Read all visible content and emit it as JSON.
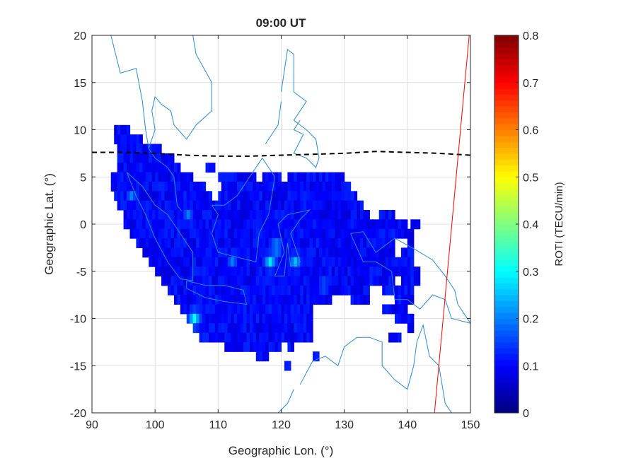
{
  "chart_data": {
    "type": "heatmap",
    "title": "09:00 UT",
    "xlabel": "Geographic Lon. (°)",
    "ylabel": "Geographic Lat. (°)",
    "xlim": [
      90,
      150
    ],
    "ylim": [
      -20,
      20
    ],
    "xticks": [
      90,
      100,
      110,
      120,
      130,
      140,
      150
    ],
    "yticks": [
      20,
      15,
      10,
      5,
      0,
      -5,
      -10,
      -15,
      -20
    ],
    "grid": true,
    "colorbar": {
      "label": "ROTI (TECU/min)",
      "colormap": "jet",
      "range": [
        0,
        0.8
      ],
      "ticks": [
        0.8,
        0.7,
        0.6,
        0.5,
        0.4,
        0.3,
        0.2,
        0.1,
        0
      ]
    },
    "roti_background": 0.1,
    "roti_coverage_rows": [
      {
        "lat": 10,
        "lon_spans": [
          [
            93.5,
            96
          ]
        ]
      },
      {
        "lat": 9,
        "lon_spans": [
          [
            93.5,
            98
          ]
        ]
      },
      {
        "lat": 8,
        "lon_spans": [
          [
            94,
            101
          ]
        ]
      },
      {
        "lat": 7,
        "lon_spans": [
          [
            94,
            103
          ]
        ]
      },
      {
        "lat": 6,
        "lon_spans": [
          [
            94,
            104
          ],
          [
            108,
            109.5
          ]
        ]
      },
      {
        "lat": 5,
        "lon_spans": [
          [
            93,
            106
          ],
          [
            110,
            116
          ],
          [
            117,
            120
          ],
          [
            121,
            130
          ]
        ]
      },
      {
        "lat": 4,
        "lon_spans": [
          [
            93,
            108
          ],
          [
            110.5,
            131
          ]
        ]
      },
      {
        "lat": 3,
        "lon_spans": [
          [
            93.5,
            109
          ],
          [
            110,
            132
          ]
        ]
      },
      {
        "lat": 2,
        "lon_spans": [
          [
            94,
            133
          ]
        ]
      },
      {
        "lat": 1,
        "lon_spans": [
          [
            95,
            134
          ],
          [
            135.5,
            138
          ]
        ]
      },
      {
        "lat": 0,
        "lon_spans": [
          [
            95,
            140
          ],
          [
            140.5,
            142
          ]
        ]
      },
      {
        "lat": -1,
        "lon_spans": [
          [
            96,
            141
          ]
        ]
      },
      {
        "lat": -2,
        "lon_spans": [
          [
            97,
            138
          ],
          [
            140,
            141
          ]
        ]
      },
      {
        "lat": -3,
        "lon_spans": [
          [
            98,
            138
          ],
          [
            139,
            141
          ]
        ]
      },
      {
        "lat": -4,
        "lon_spans": [
          [
            99,
            141
          ]
        ]
      },
      {
        "lat": -5,
        "lon_spans": [
          [
            100,
            142
          ]
        ]
      },
      {
        "lat": -6,
        "lon_spans": [
          [
            101,
            138
          ],
          [
            139,
            142
          ]
        ]
      },
      {
        "lat": -7,
        "lon_spans": [
          [
            102,
            134
          ],
          [
            136,
            141
          ]
        ]
      },
      {
        "lat": -8,
        "lon_spans": [
          [
            103,
            128
          ],
          [
            131,
            134
          ],
          [
            138,
            141
          ]
        ]
      },
      {
        "lat": -9,
        "lon_spans": [
          [
            104,
            125
          ],
          [
            136,
            140
          ]
        ]
      },
      {
        "lat": -10,
        "lon_spans": [
          [
            105,
            125
          ],
          [
            138,
            141
          ]
        ]
      },
      {
        "lat": -11,
        "lon_spans": [
          [
            106,
            125
          ],
          [
            140,
            141
          ]
        ]
      },
      {
        "lat": -12,
        "lon_spans": [
          [
            107,
            125
          ],
          [
            137,
            139
          ]
        ]
      },
      {
        "lat": -13,
        "lon_spans": [
          [
            111,
            120
          ],
          [
            121,
            122
          ]
        ]
      },
      {
        "lat": -14,
        "lon_spans": [
          [
            116,
            118
          ],
          [
            125,
            126
          ]
        ]
      },
      {
        "lat": -15,
        "lon_spans": [
          [
            120.5,
            121.5
          ]
        ]
      }
    ],
    "roti_hotspots": [
      {
        "lon": 96,
        "lat": 3,
        "roti": 0.2
      },
      {
        "lon": 105,
        "lat": 1,
        "roti": 0.2
      },
      {
        "lon": 118,
        "lat": -4,
        "roti": 0.28
      },
      {
        "lon": 119,
        "lat": -2.5,
        "roti": 0.25
      },
      {
        "lon": 122,
        "lat": -4,
        "roti": 0.25
      },
      {
        "lon": 106,
        "lat": -10,
        "roti": 0.3
      },
      {
        "lon": 112,
        "lat": -4,
        "roti": 0.2
      },
      {
        "lon": 126.5,
        "lat": -6.5,
        "roti": 0.2
      }
    ],
    "magnetic_equator": {
      "lon": [
        90,
        95,
        100,
        105,
        110,
        115,
        120,
        125,
        130,
        135,
        140,
        145,
        150
      ],
      "lat": [
        7.6,
        7.6,
        7.5,
        7.3,
        7.2,
        7.2,
        7.3,
        7.4,
        7.5,
        7.7,
        7.6,
        7.5,
        7.3
      ],
      "style": "black dashed"
    },
    "red_line": {
      "lon": [
        144.3,
        149.8
      ],
      "lat": [
        -20,
        20
      ],
      "color": "#ff0000"
    }
  }
}
